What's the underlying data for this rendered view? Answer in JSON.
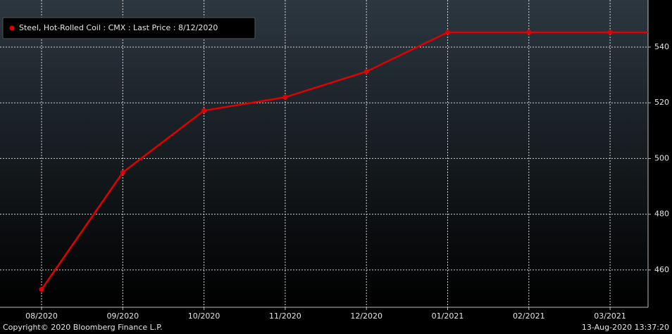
{
  "chart_data": {
    "type": "line",
    "legend": "Steel, Hot-Rolled Coil : CMX : Last Price : 8/12/2020",
    "categories": [
      "08/2020",
      "09/2020",
      "10/2020",
      "11/2020",
      "12/2020",
      "01/2021",
      "02/2021",
      "03/2021"
    ],
    "series": [
      {
        "name": "Steel, Hot-Rolled Coil : CMX : Last Price : 8/12/2020",
        "color": "#e00000",
        "values": [
          453,
          495,
          517.2,
          522,
          531.2,
          545.3,
          545.3,
          545.3
        ]
      }
    ],
    "ylim": [
      446.6,
      556.9
    ],
    "yticks": [
      460,
      480,
      500,
      520,
      540
    ],
    "grid": true,
    "copyright": "Copyright© 2020 Bloomberg Finance L.P.",
    "timestamp": "13-Aug-2020 13:37:20"
  }
}
